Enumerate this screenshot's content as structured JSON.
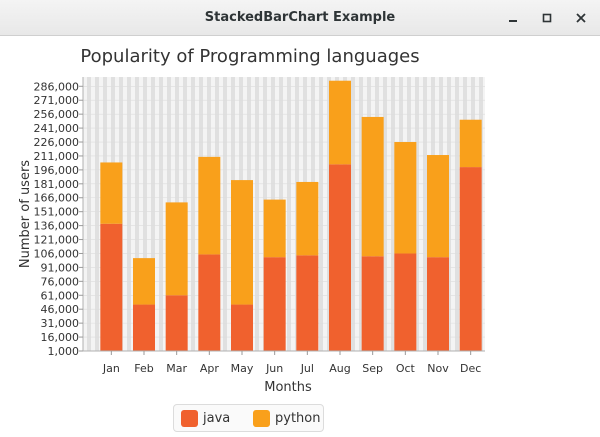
{
  "window": {
    "title": "StackedBarChart Example",
    "controls": [
      "minimize-icon",
      "maximize-icon",
      "close-icon"
    ]
  },
  "colors": {
    "java": "#f0612e",
    "python": "#f9a01b",
    "plot_bg": "#f4f4f4",
    "stripe": "#e0e0e0"
  },
  "chart_data": {
    "type": "bar",
    "stacked": true,
    "title": "Popularity of Programming languages",
    "xlabel": "Months",
    "ylabel": "Number of users",
    "categories": [
      "Jan",
      "Feb",
      "Mar",
      "Apr",
      "May",
      "Jun",
      "Jul",
      "Aug",
      "Sep",
      "Oct",
      "Nov",
      "Dec"
    ],
    "series": [
      {
        "name": "java",
        "values": [
          137000,
          50000,
          60000,
          104000,
          50000,
          101000,
          103000,
          201000,
          102000,
          105000,
          101000,
          198000
        ]
      },
      {
        "name": "python",
        "values": [
          66000,
          50000,
          100000,
          105000,
          134000,
          62000,
          79000,
          90000,
          150000,
          120000,
          110000,
          51000
        ]
      }
    ],
    "ylim": [
      1000,
      296000
    ],
    "yticks": [
      "1,000",
      "16,000",
      "31,000",
      "46,000",
      "61,000",
      "76,000",
      "91,000",
      "106,000",
      "121,000",
      "136,000",
      "151,000",
      "166,000",
      "181,000",
      "196,000",
      "211,000",
      "226,000",
      "241,000",
      "256,000",
      "271,000",
      "286,000"
    ],
    "legend": "bottom",
    "grid": true
  }
}
